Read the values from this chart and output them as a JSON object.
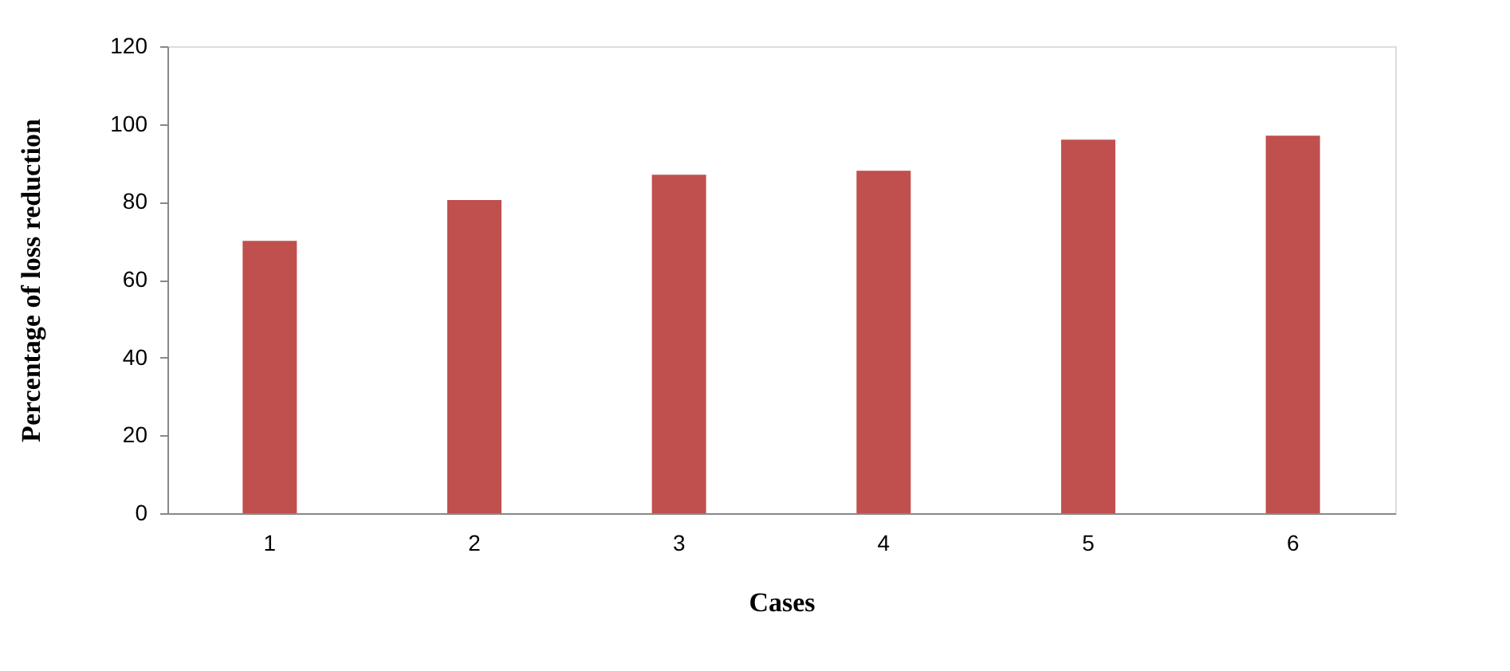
{
  "chart_data": {
    "type": "bar",
    "xlabel": "Cases",
    "ylabel": "Percentage of loss reduction",
    "categories": [
      "1",
      "2",
      "3",
      "4",
      "5",
      "6"
    ],
    "values": [
      70,
      80.5,
      87,
      88,
      96,
      97
    ],
    "color": "#c0504d",
    "ylim": [
      0,
      120
    ],
    "yticks": [
      0,
      20,
      40,
      60,
      80,
      100,
      120
    ],
    "grid": false
  }
}
